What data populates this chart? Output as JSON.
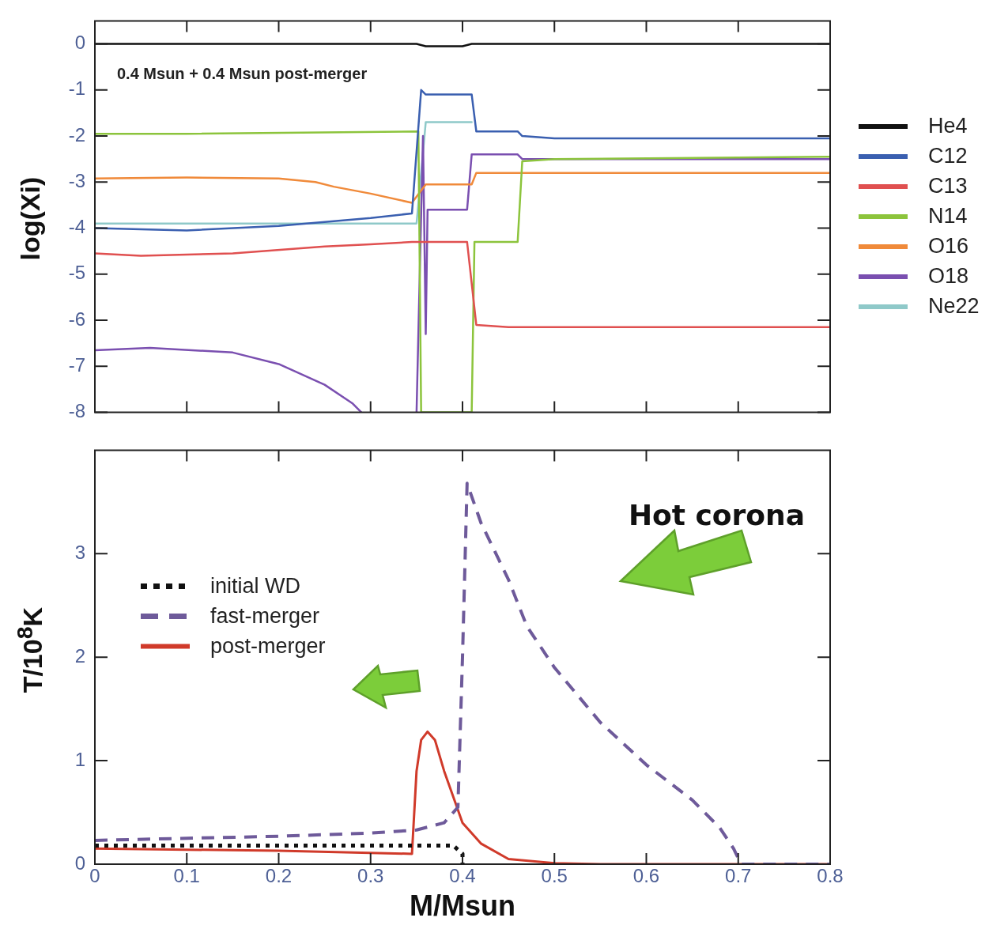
{
  "chart_data": [
    {
      "type": "line",
      "annotations": [
        "0.4 Msun + 0.4 Msun post-merger"
      ],
      "ylabel": "log(Xi)",
      "xlim": [
        0,
        0.8
      ],
      "xticks": [
        0,
        0.1,
        0.2,
        0.3,
        0.4,
        0.5,
        0.6,
        0.7,
        0.8
      ],
      "ylim": [
        -8,
        0.5
      ],
      "yticks": [
        0,
        -1,
        -2,
        -3,
        -4,
        -5,
        -6,
        -7,
        -8
      ],
      "tick_labels": "y",
      "legend": "right",
      "grid": false,
      "marker": "none",
      "line_style": "solid",
      "series": [
        {
          "name": "He4",
          "color": "#111111",
          "x": [
            0,
            0.35,
            0.36,
            0.4,
            0.41,
            0.8
          ],
          "values": [
            0,
            0,
            -0.05,
            -0.05,
            0,
            0
          ]
        },
        {
          "name": "C12",
          "color": "#3a5fb0",
          "x": [
            0,
            0.1,
            0.2,
            0.3,
            0.345,
            0.355,
            0.36,
            0.41,
            0.415,
            0.46,
            0.465,
            0.5,
            0.8
          ],
          "values": [
            -4,
            -4.05,
            -3.95,
            -3.78,
            -3.68,
            -1,
            -1.1,
            -1.1,
            -1.9,
            -1.9,
            -2,
            -2.05,
            -2.05
          ]
        },
        {
          "name": "C13",
          "color": "#e05050",
          "x": [
            0,
            0.05,
            0.15,
            0.25,
            0.3,
            0.345,
            0.36,
            0.405,
            0.415,
            0.45,
            0.8
          ],
          "values": [
            -4.55,
            -4.6,
            -4.55,
            -4.4,
            -4.35,
            -4.3,
            -4.3,
            -4.3,
            -6.1,
            -6.15,
            -6.15
          ]
        },
        {
          "name": "N14",
          "color": "#8cc43c",
          "x": [
            0,
            0.1,
            0.352,
            0.355,
            0.41,
            0.413,
            0.46,
            0.465,
            0.5,
            0.8
          ],
          "values": [
            -1.95,
            -1.95,
            -1.9,
            -8,
            -8,
            -4.3,
            -4.3,
            -2.55,
            -2.5,
            -2.45
          ]
        },
        {
          "name": "O16",
          "color": "#f08a3a",
          "x": [
            0,
            0.1,
            0.2,
            0.24,
            0.26,
            0.3,
            0.345,
            0.36,
            0.41,
            0.415,
            0.8
          ],
          "values": [
            -2.92,
            -2.9,
            -2.92,
            -3,
            -3.1,
            -3.25,
            -3.45,
            -3.05,
            -3.05,
            -2.8,
            -2.8
          ]
        },
        {
          "name": "O18",
          "color": "#7a4fb0",
          "x": [
            0,
            0.06,
            0.15,
            0.2,
            0.25,
            0.28,
            0.29,
            0.32,
            0.35,
            0.357,
            0.36,
            0.362,
            0.405,
            0.41,
            0.46,
            0.465,
            0.8
          ],
          "values": [
            -6.65,
            -6.6,
            -6.7,
            -6.95,
            -7.4,
            -7.8,
            -8,
            null,
            -8,
            -2,
            -6.3,
            -3.6,
            -3.6,
            -2.4,
            -2.4,
            -2.5,
            -2.5
          ]
        },
        {
          "name": "Ne22",
          "color": "#8fc9c9",
          "x": [
            0,
            0.35,
            0.36,
            0.41
          ],
          "values": [
            -3.9,
            -3.9,
            -1.7,
            -1.7
          ]
        }
      ]
    },
    {
      "type": "line",
      "annotations": [
        "Hot corona"
      ],
      "xlabel": "M/Msun",
      "ylabel": "T/10$^{8}$K",
      "xlim": [
        0,
        0.8
      ],
      "xticks": [
        0,
        0.1,
        0.2,
        0.3,
        0.4,
        0.5,
        0.6,
        0.7,
        0.8
      ],
      "ylim": [
        0,
        4
      ],
      "yticks": [
        0,
        1,
        2,
        3
      ],
      "legend": "left",
      "grid": false,
      "marker": "none",
      "series": [
        {
          "name": "initial WD",
          "color": "#111111",
          "line_style": "dotted",
          "x": [
            0,
            0.2,
            0.35,
            0.39,
            0.4,
            0.4
          ],
          "values": [
            0.18,
            0.18,
            0.18,
            0.18,
            0.1,
            0
          ]
        },
        {
          "name": "fast-merger",
          "color": "#6e5a9a",
          "line_style": "dashed",
          "x": [
            0,
            0.1,
            0.2,
            0.3,
            0.35,
            0.38,
            0.395,
            0.4,
            0.405,
            0.42,
            0.45,
            0.47,
            0.5,
            0.55,
            0.6,
            0.65,
            0.68,
            0.695,
            0.703,
            0.8
          ],
          "values": [
            0.23,
            0.25,
            0.27,
            0.3,
            0.33,
            0.4,
            0.55,
            2,
            3.68,
            3.3,
            2.75,
            2.3,
            1.9,
            1.37,
            0.96,
            0.62,
            0.35,
            0.15,
            0,
            0
          ]
        },
        {
          "name": "post-merger",
          "color": "#d03a2a",
          "line_style": "solid",
          "x": [
            0,
            0.2,
            0.345,
            0.35,
            0.355,
            0.362,
            0.37,
            0.38,
            0.39,
            0.4,
            0.42,
            0.45,
            0.5,
            0.55,
            0.8
          ],
          "values": [
            0.15,
            0.13,
            0.1,
            0.9,
            1.2,
            1.28,
            1.2,
            0.9,
            0.65,
            0.4,
            0.2,
            0.05,
            0.01,
            0,
            0
          ]
        }
      ]
    }
  ]
}
